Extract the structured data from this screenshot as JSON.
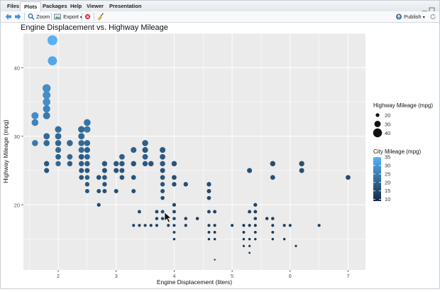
{
  "tabs": [
    {
      "label": "Files",
      "active": false
    },
    {
      "label": "Plots",
      "active": true
    },
    {
      "label": "Packages",
      "active": false
    },
    {
      "label": "Help",
      "active": false
    },
    {
      "label": "Viewer",
      "active": false
    },
    {
      "label": "Presentation",
      "active": false
    }
  ],
  "toolbar": {
    "back_icon": "arrow-left-icon",
    "forward_icon": "arrow-right-icon",
    "zoom_label": "Zoom",
    "export_label": "Export",
    "publish_label": "Publish",
    "accent": "#3a8fd6",
    "remove_color": "#d9262c"
  },
  "chart_data": {
    "type": "scatter",
    "title": "Engine Displacement vs. Highway Mileage",
    "xlabel": "Engine Displacement (liters)",
    "ylabel": "Highway Mileage (mpg)",
    "xlim": [
      1.4,
      7.3
    ],
    "ylim": [
      10.5,
      45
    ],
    "x_ticks": [
      2,
      3,
      4,
      5,
      6,
      7
    ],
    "y_ticks": [
      20,
      30,
      40
    ],
    "grid": true,
    "background": "#ebebeb",
    "legend_position": "right",
    "size_legend": {
      "title": "Highway Mileage (mpg)",
      "values": [
        20,
        30,
        40
      ]
    },
    "color_legend": {
      "title": "City Mileage (mpg)",
      "ticks": [
        10,
        15,
        20,
        25,
        30,
        35
      ],
      "low_color": "#132b43",
      "high_color": "#56b1f7",
      "range": [
        9,
        35
      ]
    },
    "points": [
      {
        "x": 1.9,
        "y": 44,
        "cty": 35
      },
      {
        "x": 1.9,
        "y": 41,
        "cty": 33
      },
      {
        "x": 1.8,
        "y": 37,
        "cty": 28
      },
      {
        "x": 1.8,
        "y": 36,
        "cty": 28
      },
      {
        "x": 1.8,
        "y": 35,
        "cty": 28
      },
      {
        "x": 1.8,
        "y": 34,
        "cty": 26
      },
      {
        "x": 1.6,
        "y": 33,
        "cty": 28
      },
      {
        "x": 1.6,
        "y": 32,
        "cty": 26
      },
      {
        "x": 1.8,
        "y": 33,
        "cty": 24
      },
      {
        "x": 1.8,
        "y": 30,
        "cty": 21
      },
      {
        "x": 1.8,
        "y": 29,
        "cty": 21
      },
      {
        "x": 1.6,
        "y": 29,
        "cty": 24
      },
      {
        "x": 2.0,
        "y": 31,
        "cty": 22
      },
      {
        "x": 2.0,
        "y": 30,
        "cty": 21
      },
      {
        "x": 2.0,
        "y": 29,
        "cty": 20
      },
      {
        "x": 2.0,
        "y": 28,
        "cty": 21
      },
      {
        "x": 2.0,
        "y": 27,
        "cty": 19
      },
      {
        "x": 2.0,
        "y": 26,
        "cty": 21
      },
      {
        "x": 2.2,
        "y": 29,
        "cty": 21
      },
      {
        "x": 2.2,
        "y": 27,
        "cty": 21
      },
      {
        "x": 2.2,
        "y": 26,
        "cty": 19
      },
      {
        "x": 1.8,
        "y": 26,
        "cty": 18
      },
      {
        "x": 1.8,
        "y": 25,
        "cty": 17
      },
      {
        "x": 2.4,
        "y": 31,
        "cty": 21
      },
      {
        "x": 2.4,
        "y": 30,
        "cty": 21
      },
      {
        "x": 2.4,
        "y": 29,
        "cty": 21
      },
      {
        "x": 2.4,
        "y": 28,
        "cty": 21
      },
      {
        "x": 2.4,
        "y": 27,
        "cty": 18
      },
      {
        "x": 2.4,
        "y": 26,
        "cty": 19
      },
      {
        "x": 2.4,
        "y": 25,
        "cty": 18
      },
      {
        "x": 2.4,
        "y": 24,
        "cty": 18
      },
      {
        "x": 2.5,
        "y": 32,
        "cty": 23
      },
      {
        "x": 2.5,
        "y": 31,
        "cty": 24
      },
      {
        "x": 2.5,
        "y": 29,
        "cty": 21
      },
      {
        "x": 2.5,
        "y": 28,
        "cty": 19
      },
      {
        "x": 2.5,
        "y": 27,
        "cty": 20
      },
      {
        "x": 2.5,
        "y": 26,
        "cty": 19
      },
      {
        "x": 2.5,
        "y": 25,
        "cty": 18
      },
      {
        "x": 2.5,
        "y": 24,
        "cty": 19
      },
      {
        "x": 2.5,
        "y": 23,
        "cty": 18
      },
      {
        "x": 2.5,
        "y": 22,
        "cty": 17
      },
      {
        "x": 2.7,
        "y": 24,
        "cty": 17
      },
      {
        "x": 2.7,
        "y": 22,
        "cty": 16
      },
      {
        "x": 2.7,
        "y": 20,
        "cty": 15
      },
      {
        "x": 2.8,
        "y": 26,
        "cty": 18
      },
      {
        "x": 2.8,
        "y": 25,
        "cty": 17
      },
      {
        "x": 2.8,
        "y": 24,
        "cty": 18
      },
      {
        "x": 2.8,
        "y": 23,
        "cty": 17
      },
      {
        "x": 2.8,
        "y": 22,
        "cty": 16
      },
      {
        "x": 3.0,
        "y": 26,
        "cty": 18
      },
      {
        "x": 3.0,
        "y": 25,
        "cty": 17
      },
      {
        "x": 3.0,
        "y": 22,
        "cty": 16
      },
      {
        "x": 3.1,
        "y": 27,
        "cty": 19
      },
      {
        "x": 3.1,
        "y": 26,
        "cty": 18
      },
      {
        "x": 3.1,
        "y": 25,
        "cty": 18
      },
      {
        "x": 3.1,
        "y": 24,
        "cty": 17
      },
      {
        "x": 3.3,
        "y": 28,
        "cty": 19
      },
      {
        "x": 3.3,
        "y": 26,
        "cty": 17
      },
      {
        "x": 3.3,
        "y": 24,
        "cty": 17
      },
      {
        "x": 3.3,
        "y": 22,
        "cty": 16
      },
      {
        "x": 3.3,
        "y": 17,
        "cty": 14
      },
      {
        "x": 3.4,
        "y": 19,
        "cty": 15
      },
      {
        "x": 3.4,
        "y": 17,
        "cty": 14
      },
      {
        "x": 3.5,
        "y": 29,
        "cty": 19
      },
      {
        "x": 3.5,
        "y": 28,
        "cty": 18
      },
      {
        "x": 3.5,
        "y": 27,
        "cty": 19
      },
      {
        "x": 3.5,
        "y": 26,
        "cty": 18
      },
      {
        "x": 3.5,
        "y": 17,
        "cty": 14
      },
      {
        "x": 3.6,
        "y": 26,
        "cty": 17
      },
      {
        "x": 3.6,
        "y": 17,
        "cty": 13
      },
      {
        "x": 3.7,
        "y": 19,
        "cty": 15
      },
      {
        "x": 3.7,
        "y": 18,
        "cty": 14
      },
      {
        "x": 3.7,
        "y": 17,
        "cty": 13
      },
      {
        "x": 3.8,
        "y": 28,
        "cty": 18
      },
      {
        "x": 3.8,
        "y": 27,
        "cty": 18
      },
      {
        "x": 3.8,
        "y": 26,
        "cty": 18
      },
      {
        "x": 3.8,
        "y": 25,
        "cty": 17
      },
      {
        "x": 3.8,
        "y": 24,
        "cty": 17
      },
      {
        "x": 3.8,
        "y": 23,
        "cty": 17
      },
      {
        "x": 3.8,
        "y": 22,
        "cty": 16
      },
      {
        "x": 3.8,
        "y": 21,
        "cty": 16
      },
      {
        "x": 3.8,
        "y": 19,
        "cty": 15
      },
      {
        "x": 3.8,
        "y": 18,
        "cty": 14
      },
      {
        "x": 3.9,
        "y": 17,
        "cty": 14
      },
      {
        "x": 4.0,
        "y": 26,
        "cty": 17
      },
      {
        "x": 4.0,
        "y": 24,
        "cty": 16
      },
      {
        "x": 4.0,
        "y": 23,
        "cty": 16
      },
      {
        "x": 4.0,
        "y": 20,
        "cty": 15
      },
      {
        "x": 4.0,
        "y": 19,
        "cty": 15
      },
      {
        "x": 4.0,
        "y": 18,
        "cty": 14
      },
      {
        "x": 4.0,
        "y": 17,
        "cty": 14
      },
      {
        "x": 4.0,
        "y": 16,
        "cty": 13
      },
      {
        "x": 4.0,
        "y": 15,
        "cty": 12
      },
      {
        "x": 4.2,
        "y": 23,
        "cty": 16
      },
      {
        "x": 4.2,
        "y": 18,
        "cty": 13
      },
      {
        "x": 4.2,
        "y": 17,
        "cty": 13
      },
      {
        "x": 4.4,
        "y": 18,
        "cty": 13
      },
      {
        "x": 4.6,
        "y": 23,
        "cty": 16
      },
      {
        "x": 4.6,
        "y": 22,
        "cty": 15
      },
      {
        "x": 4.6,
        "y": 21,
        "cty": 15
      },
      {
        "x": 4.6,
        "y": 19,
        "cty": 14
      },
      {
        "x": 4.6,
        "y": 17,
        "cty": 13
      },
      {
        "x": 4.6,
        "y": 16,
        "cty": 12
      },
      {
        "x": 4.6,
        "y": 15,
        "cty": 12
      },
      {
        "x": 4.7,
        "y": 19,
        "cty": 14
      },
      {
        "x": 4.7,
        "y": 17,
        "cty": 13
      },
      {
        "x": 4.7,
        "y": 16,
        "cty": 12
      },
      {
        "x": 4.7,
        "y": 15,
        "cty": 12
      },
      {
        "x": 4.7,
        "y": 12,
        "cty": 9
      },
      {
        "x": 5.0,
        "y": 17,
        "cty": 13
      },
      {
        "x": 5.2,
        "y": 17,
        "cty": 12
      },
      {
        "x": 5.2,
        "y": 16,
        "cty": 12
      },
      {
        "x": 5.2,
        "y": 15,
        "cty": 12
      },
      {
        "x": 5.2,
        "y": 14,
        "cty": 11
      },
      {
        "x": 5.3,
        "y": 25,
        "cty": 16
      },
      {
        "x": 5.3,
        "y": 19,
        "cty": 14
      },
      {
        "x": 5.3,
        "y": 17,
        "cty": 13
      },
      {
        "x": 5.3,
        "y": 15,
        "cty": 12
      },
      {
        "x": 5.3,
        "y": 14,
        "cty": 11
      },
      {
        "x": 5.3,
        "y": 13,
        "cty": 10
      },
      {
        "x": 5.4,
        "y": 20,
        "cty": 14
      },
      {
        "x": 5.4,
        "y": 19,
        "cty": 14
      },
      {
        "x": 5.4,
        "y": 18,
        "cty": 13
      },
      {
        "x": 5.4,
        "y": 17,
        "cty": 12
      },
      {
        "x": 5.4,
        "y": 16,
        "cty": 12
      },
      {
        "x": 5.4,
        "y": 15,
        "cty": 12
      },
      {
        "x": 5.6,
        "y": 18,
        "cty": 13
      },
      {
        "x": 5.7,
        "y": 26,
        "cty": 16
      },
      {
        "x": 5.7,
        "y": 24,
        "cty": 16
      },
      {
        "x": 5.7,
        "y": 18,
        "cty": 13
      },
      {
        "x": 5.7,
        "y": 17,
        "cty": 13
      },
      {
        "x": 5.7,
        "y": 16,
        "cty": 12
      },
      {
        "x": 5.7,
        "y": 15,
        "cty": 12
      },
      {
        "x": 5.9,
        "y": 17,
        "cty": 13
      },
      {
        "x": 5.9,
        "y": 15,
        "cty": 12
      },
      {
        "x": 6.0,
        "y": 17,
        "cty": 13
      },
      {
        "x": 6.1,
        "y": 14,
        "cty": 11
      },
      {
        "x": 6.2,
        "y": 26,
        "cty": 16
      },
      {
        "x": 6.2,
        "y": 25,
        "cty": 16
      },
      {
        "x": 6.5,
        "y": 17,
        "cty": 13
      },
      {
        "x": 7.0,
        "y": 24,
        "cty": 15
      }
    ]
  }
}
